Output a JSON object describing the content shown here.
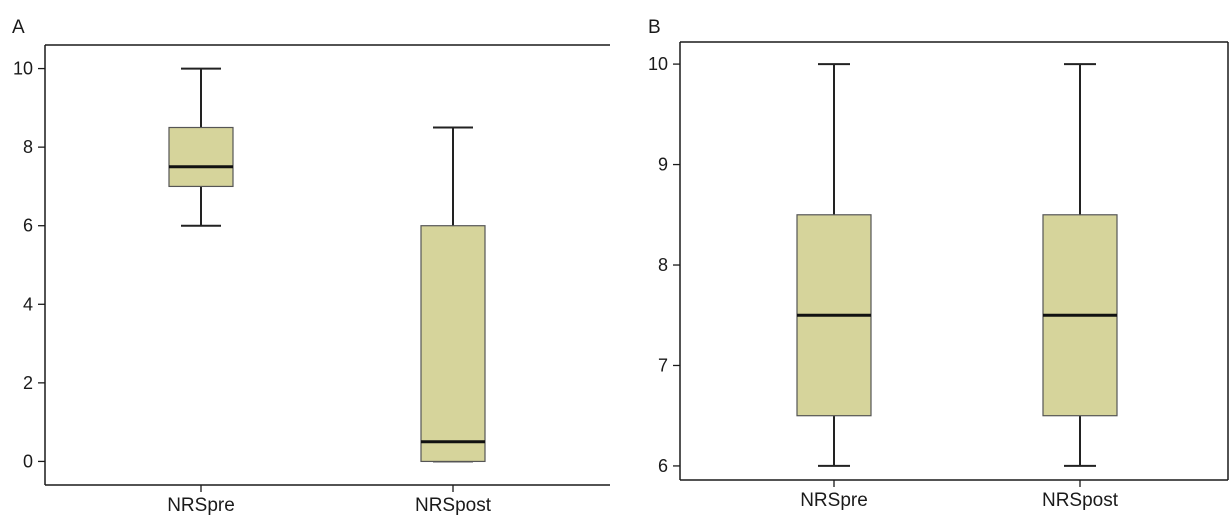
{
  "colors": {
    "box_fill": "#d6d49b",
    "axis": "#1a1a1a"
  },
  "chart_data": [
    {
      "type": "box",
      "panel_label": "A",
      "categories": [
        "NRSpre",
        "NRSpost"
      ],
      "y_ticks": [
        0,
        2,
        4,
        6,
        8,
        10
      ],
      "ylim": [
        -0.6,
        10.6
      ],
      "frame": "left-bottom-top",
      "series": [
        {
          "category": "NRSpre",
          "min": 6,
          "q1": 7,
          "median": 7.5,
          "q3": 8.5,
          "max": 10
        },
        {
          "category": "NRSpost",
          "min": 0,
          "q1": 0,
          "median": 0.5,
          "q3": 6,
          "max": 8.5
        }
      ]
    },
    {
      "type": "box",
      "panel_label": "B",
      "categories": [
        "NRSpre",
        "NRSpost"
      ],
      "y_ticks": [
        6,
        7,
        8,
        9,
        10
      ],
      "ylim": [
        5.86,
        10.22
      ],
      "frame": "full",
      "series": [
        {
          "category": "NRSpre",
          "min": 6,
          "q1": 6.5,
          "median": 7.5,
          "q3": 8.5,
          "max": 10
        },
        {
          "category": "NRSpost",
          "min": 6,
          "q1": 6.5,
          "median": 7.5,
          "q3": 8.5,
          "max": 10
        }
      ]
    }
  ]
}
